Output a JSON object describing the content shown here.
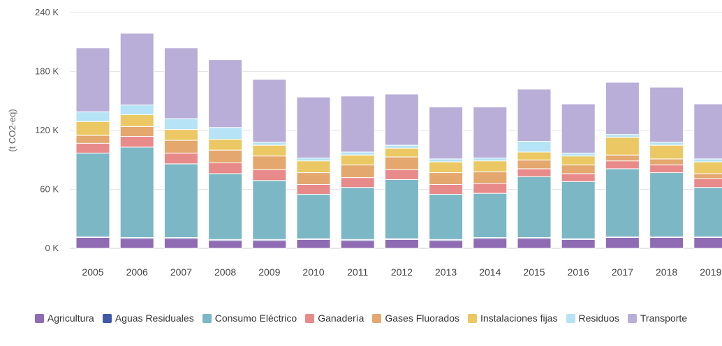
{
  "chart_data": {
    "type": "bar",
    "stacked": true,
    "ylabel": "(t CO2-eq)",
    "ylim": [
      0,
      240000
    ],
    "yticks": [
      0,
      60000,
      120000,
      180000,
      240000
    ],
    "ytick_labels": [
      "0 K",
      "60 K",
      "120 K",
      "180 K",
      "240 K"
    ],
    "grid": true,
    "legend_position": "bottom",
    "categories": [
      "2005",
      "2006",
      "2007",
      "2008",
      "2009",
      "2010",
      "2011",
      "2012",
      "2013",
      "2014",
      "2015",
      "2016",
      "2017",
      "2018",
      "2019"
    ],
    "series": [
      {
        "name": "Agricultura",
        "color": "#8e6bb3",
        "values": [
          11000,
          10000,
          10000,
          8000,
          8000,
          9000,
          8000,
          9000,
          8000,
          10000,
          10000,
          9000,
          11000,
          11000,
          11000
        ]
      },
      {
        "name": "Aguas Residuales",
        "color": "#3f5aa8",
        "values": [
          1000,
          1000,
          1000,
          1000,
          1000,
          1000,
          1000,
          1000,
          1000,
          1000,
          1000,
          1000,
          1000,
          1000,
          1000
        ]
      },
      {
        "name": "Consumo Eléctrico",
        "color": "#7bb7c4",
        "values": [
          85000,
          92000,
          75000,
          67000,
          60000,
          45000,
          53000,
          60000,
          46000,
          45000,
          62000,
          58000,
          69000,
          65000,
          50000
        ]
      },
      {
        "name": "Ganadería",
        "color": "#e98a8a",
        "values": [
          10000,
          11000,
          11000,
          11000,
          11000,
          10000,
          10000,
          10000,
          10000,
          10000,
          8000,
          8000,
          8000,
          8000,
          9000
        ]
      },
      {
        "name": "Gases Fluorados",
        "color": "#e4a76e",
        "values": [
          8000,
          10000,
          13000,
          13000,
          14000,
          12000,
          13000,
          13000,
          12000,
          12000,
          9000,
          9000,
          6000,
          6000,
          5000
        ]
      },
      {
        "name": "Instalaciones fijas",
        "color": "#ebc863",
        "values": [
          14000,
          12000,
          11000,
          11000,
          11000,
          12000,
          10000,
          9000,
          11000,
          11000,
          8000,
          9000,
          18000,
          14000,
          12000
        ]
      },
      {
        "name": "Residuos",
        "color": "#b6e3f5",
        "values": [
          10000,
          10000,
          11000,
          12000,
          3000,
          3000,
          3000,
          3000,
          3000,
          3000,
          11000,
          3000,
          3000,
          3000,
          3000
        ]
      },
      {
        "name": "Transporte",
        "color": "#b9aed8",
        "values": [
          65000,
          73000,
          72000,
          69000,
          64000,
          62000,
          57000,
          52000,
          53000,
          52000,
          53000,
          50000,
          53000,
          56000,
          56000
        ]
      }
    ]
  }
}
